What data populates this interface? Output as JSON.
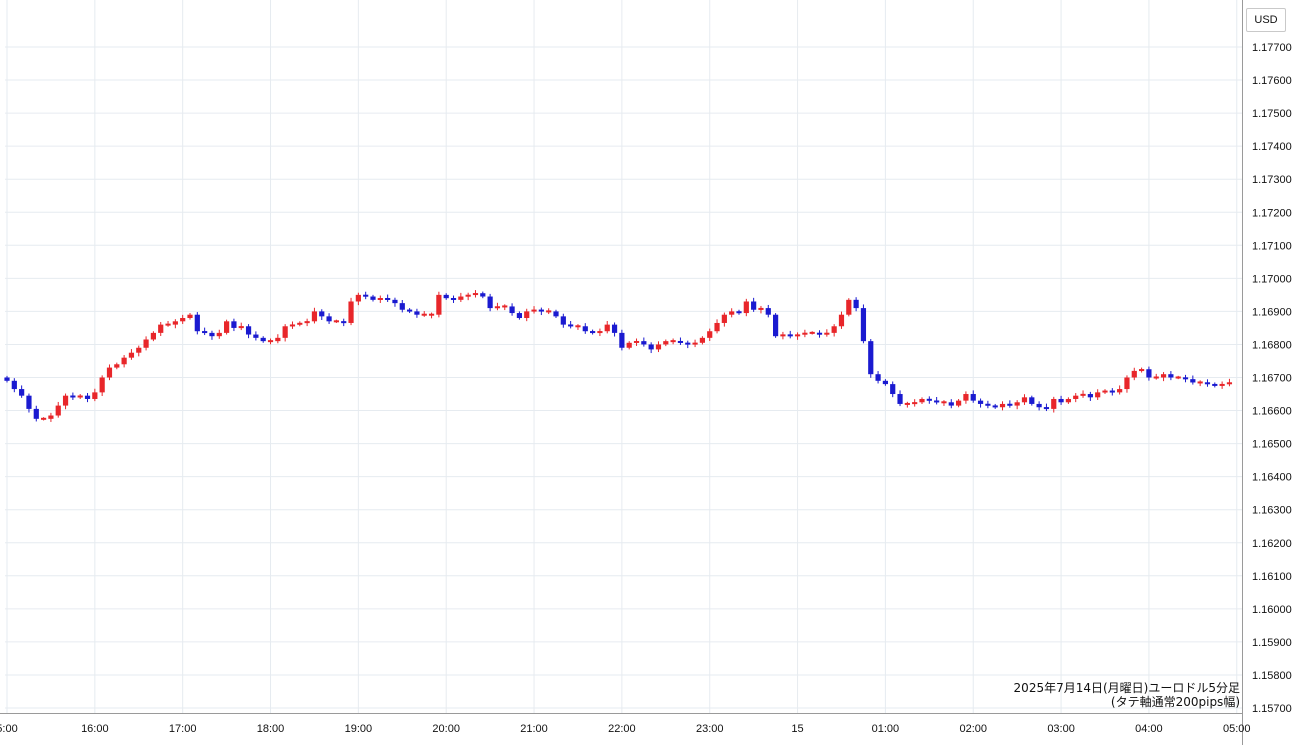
{
  "chart_data": {
    "type": "candlestick",
    "currency_label": "USD",
    "caption_line1": "2025年7月14日(月曜日)ユーロドル5分足",
    "caption_line2": "(タテ軸通常200pips幅)",
    "ylim": [
      1.157,
      1.178
    ],
    "yticks": [
      "1.17700",
      "1.17600",
      "1.17500",
      "1.17400",
      "1.17300",
      "1.17200",
      "1.17100",
      "1.17000",
      "1.16900",
      "1.16800",
      "1.16700",
      "1.16600",
      "1.16500",
      "1.16400",
      "1.16300",
      "1.16200",
      "1.16100",
      "1.16000",
      "1.15900",
      "1.15800",
      "1.15700"
    ],
    "xticks": [
      {
        "label": "5:00",
        "index": 0
      },
      {
        "label": "16:00",
        "index": 12
      },
      {
        "label": "17:00",
        "index": 24
      },
      {
        "label": "18:00",
        "index": 36
      },
      {
        "label": "19:00",
        "index": 48
      },
      {
        "label": "20:00",
        "index": 60
      },
      {
        "label": "21:00",
        "index": 72
      },
      {
        "label": "22:00",
        "index": 84
      },
      {
        "label": "23:00",
        "index": 96
      },
      {
        "label": "15",
        "index": 108
      },
      {
        "label": "01:00",
        "index": 120
      },
      {
        "label": "02:00",
        "index": 132
      },
      {
        "label": "03:00",
        "index": 144
      },
      {
        "label": "04:00",
        "index": 156
      },
      {
        "label": "05:00",
        "index": 168
      }
    ],
    "colors": {
      "up": "#e8262a",
      "down": "#1a1ad0",
      "grid": "#e6ebf0"
    },
    "close_series": [
      1.1669,
      1.16665,
      1.16645,
      1.16605,
      1.16575,
      1.16575,
      1.16585,
      1.16615,
      1.16645,
      1.1664,
      1.16645,
      1.16635,
      1.16655,
      1.167,
      1.1673,
      1.1674,
      1.1676,
      1.16775,
      1.1679,
      1.16815,
      1.16835,
      1.1686,
      1.1686,
      1.1687,
      1.1688,
      1.1689,
      1.1684,
      1.16835,
      1.16825,
      1.16835,
      1.1687,
      1.1685,
      1.16855,
      1.1683,
      1.1682,
      1.1681,
      1.1681,
      1.1682,
      1.16855,
      1.1686,
      1.16865,
      1.1687,
      1.169,
      1.16885,
      1.1687,
      1.1687,
      1.16865,
      1.1693,
      1.1695,
      1.16945,
      1.16935,
      1.1694,
      1.16935,
      1.16925,
      1.16905,
      1.169,
      1.1689,
      1.1689,
      1.1689,
      1.1695,
      1.1694,
      1.16935,
      1.16945,
      1.1695,
      1.16955,
      1.16945,
      1.1691,
      1.16915,
      1.16915,
      1.16895,
      1.1688,
      1.169,
      1.16905,
      1.169,
      1.169,
      1.16885,
      1.1686,
      1.16855,
      1.16855,
      1.1684,
      1.16835,
      1.1684,
      1.1686,
      1.16835,
      1.1679,
      1.16805,
      1.1681,
      1.168,
      1.16785,
      1.168,
      1.1681,
      1.1681,
      1.16805,
      1.168,
      1.16805,
      1.1682,
      1.1684,
      1.16865,
      1.1689,
      1.169,
      1.16895,
      1.1693,
      1.16905,
      1.1691,
      1.1689,
      1.16825,
      1.1683,
      1.16825,
      1.1683,
      1.16835,
      1.16835,
      1.1683,
      1.16835,
      1.16855,
      1.1689,
      1.16935,
      1.1691,
      1.1681,
      1.1671,
      1.1669,
      1.1668,
      1.1665,
      1.1662,
      1.1662,
      1.16625,
      1.16635,
      1.1663,
      1.16625,
      1.16625,
      1.16615,
      1.1663,
      1.1665,
      1.1663,
      1.1662,
      1.16615,
      1.1661,
      1.1662,
      1.16615,
      1.16625,
      1.1664,
      1.1662,
      1.1661,
      1.16605,
      1.16635,
      1.16625,
      1.16635,
      1.16645,
      1.1665,
      1.1664,
      1.16655,
      1.1666,
      1.16655,
      1.16665,
      1.167,
      1.1672,
      1.16725,
      1.167,
      1.167,
      1.1671,
      1.167,
      1.167,
      1.16695,
      1.16685,
      1.16685,
      1.1668,
      1.16675,
      1.1668,
      1.16685
    ]
  }
}
